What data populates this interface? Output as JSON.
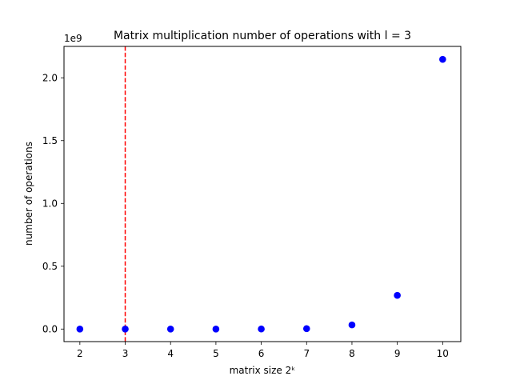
{
  "chart_data": {
    "type": "scatter",
    "title": "Matrix multiplication number of operations with l = 3",
    "xlabel": "matrix size 2ᵏ",
    "ylabel": "number of operations",
    "offset_label": "1e9",
    "x": [
      2,
      3,
      4,
      5,
      6,
      7,
      8,
      9,
      10
    ],
    "y": [
      1000,
      1500,
      2000,
      50000,
      400000,
      3000000,
      33000000,
      268000000,
      2147000000
    ],
    "xlim": [
      1.65,
      10.4
    ],
    "ylim": [
      -100000000,
      2250000000
    ],
    "xticks": [
      2,
      3,
      4,
      5,
      6,
      7,
      8,
      9,
      10
    ],
    "xtick_labels": [
      "2",
      "3",
      "4",
      "5",
      "6",
      "7",
      "8",
      "9",
      "10"
    ],
    "yticks": [
      0,
      500000000,
      1000000000,
      1500000000,
      2000000000
    ],
    "ytick_labels": [
      "0.0",
      "0.5",
      "1.0",
      "1.5",
      "2.0"
    ],
    "vline": {
      "x": 3,
      "color": "#ff0000",
      "style": "dashed"
    },
    "marker_color": "#0000ff",
    "grid": false,
    "legend": "none"
  }
}
